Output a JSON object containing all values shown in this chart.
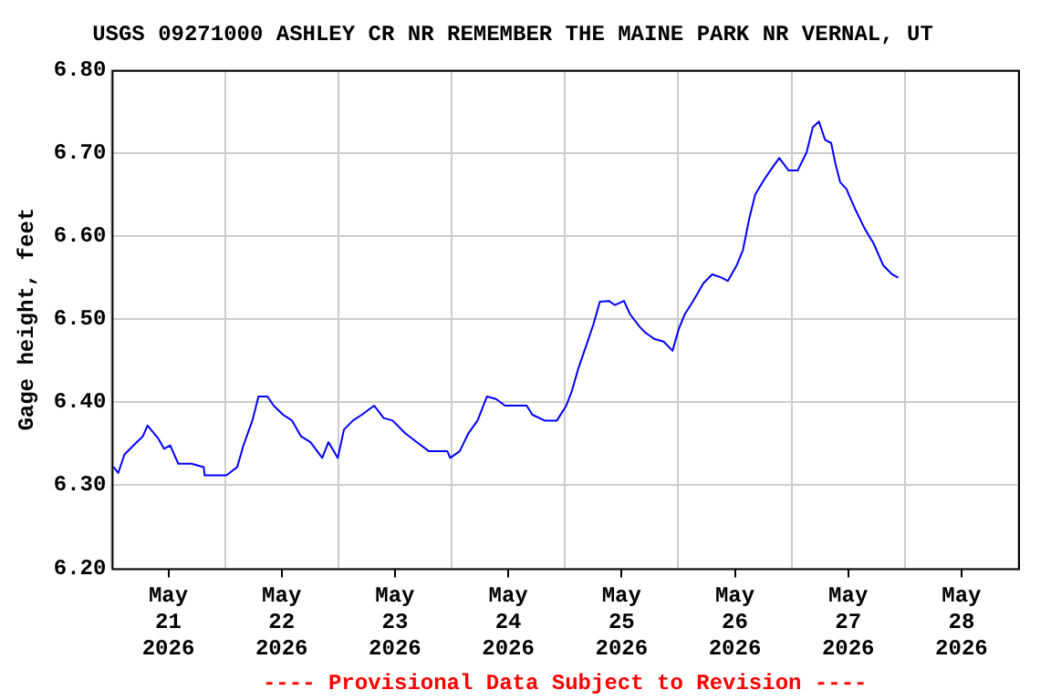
{
  "chart_data": {
    "type": "line",
    "title": "USGS 09271000 ASHLEY CR NR REMEMBER THE MAINE PARK NR VERNAL, UT",
    "ylabel": "Gage height, feet",
    "annotations": [
      "---- Provisional Data Subject to Revision ----"
    ],
    "x": [
      "2026-05-21T00:24",
      "2026-05-21T01:24",
      "2026-05-21T02:42",
      "2026-05-21T04:36",
      "2026-05-21T06:36",
      "2026-05-21T07:36",
      "2026-05-21T09:48",
      "2026-05-21T11:06",
      "2026-05-21T12:24",
      "2026-05-21T14:06",
      "2026-05-21T16:54",
      "2026-05-21T19:30",
      "2026-05-21T19:42",
      "2026-05-22T00:18",
      "2026-05-22T02:36",
      "2026-05-22T03:54",
      "2026-05-22T05:48",
      "2026-05-22T07:06",
      "2026-05-22T09:00",
      "2026-05-22T10:18",
      "2026-05-22T12:18",
      "2026-05-22T14:12",
      "2026-05-22T16:06",
      "2026-05-22T18:06",
      "2026-05-22T20:36",
      "2026-05-22T21:54",
      "2026-05-22T23:54",
      "2026-05-23T01:12",
      "2026-05-23T03:06",
      "2026-05-23T05:00",
      "2026-05-23T07:36",
      "2026-05-23T09:36",
      "2026-05-23T11:30",
      "2026-05-23T14:06",
      "2026-05-23T16:36",
      "2026-05-23T19:12",
      "2026-05-23T23:06",
      "2026-05-23T23:42",
      "2026-05-24T01:42",
      "2026-05-24T03:36",
      "2026-05-24T05:30",
      "2026-05-24T07:30",
      "2026-05-24T09:24",
      "2026-05-24T11:18",
      "2026-05-24T15:54",
      "2026-05-24T17:06",
      "2026-05-24T19:42",
      "2026-05-24T22:18",
      "2026-05-25T00:18",
      "2026-05-25T01:30",
      "2026-05-25T02:48",
      "2026-05-25T04:48",
      "2026-05-25T06:06",
      "2026-05-25T07:24",
      "2026-05-25T09:18",
      "2026-05-25T10:36",
      "2026-05-25T12:30",
      "2026-05-25T13:48",
      "2026-05-25T15:48",
      "2026-05-25T17:00",
      "2026-05-25T19:00",
      "2026-05-25T20:54",
      "2026-05-25T22:48",
      "2026-05-26T00:06",
      "2026-05-26T01:24",
      "2026-05-26T03:24",
      "2026-05-26T05:18",
      "2026-05-26T07:12",
      "2026-05-26T09:12",
      "2026-05-26T10:30",
      "2026-05-26T12:24",
      "2026-05-26T13:42",
      "2026-05-26T15:00",
      "2026-05-26T16:18",
      "2026-05-26T18:12",
      "2026-05-26T19:30",
      "2026-05-26T21:24",
      "2026-05-26T23:24",
      "2026-05-27T01:18",
      "2026-05-27T03:12",
      "2026-05-27T04:30",
      "2026-05-27T05:48",
      "2026-05-27T07:06",
      "2026-05-27T08:24",
      "2026-05-27T09:18",
      "2026-05-27T10:18",
      "2026-05-27T11:36",
      "2026-05-27T13:36",
      "2026-05-27T15:30",
      "2026-05-27T17:24",
      "2026-05-27T19:24",
      "2026-05-27T21:18",
      "2026-05-27T22:36"
    ],
    "series": [
      {
        "color": "#0000ff",
        "values": [
          6.322,
          6.315,
          6.337,
          6.348,
          6.359,
          6.372,
          6.357,
          6.344,
          6.348,
          6.326,
          6.326,
          6.322,
          6.312,
          6.312,
          6.322,
          6.348,
          6.378,
          6.407,
          6.407,
          6.396,
          6.385,
          6.378,
          6.359,
          6.352,
          6.333,
          6.352,
          6.333,
          6.367,
          6.378,
          6.385,
          6.396,
          6.381,
          6.378,
          6.363,
          6.352,
          6.341,
          6.341,
          6.333,
          6.341,
          6.363,
          6.378,
          6.407,
          6.404,
          6.396,
          6.396,
          6.385,
          6.378,
          6.378,
          6.396,
          6.414,
          6.44,
          6.473,
          6.495,
          6.521,
          6.522,
          6.517,
          6.522,
          6.506,
          6.491,
          6.484,
          6.476,
          6.473,
          6.462,
          6.488,
          6.506,
          6.524,
          6.543,
          6.554,
          6.55,
          6.546,
          6.565,
          6.583,
          6.62,
          6.65,
          6.668,
          6.679,
          6.694,
          6.679,
          6.679,
          6.701,
          6.731,
          6.738,
          6.716,
          6.712,
          6.687,
          6.665,
          6.657,
          6.631,
          6.609,
          6.591,
          6.565,
          6.554,
          6.55
        ]
      }
    ],
    "xlim": [
      "2026-05-21T00:00",
      "2026-05-29T00:00"
    ],
    "xticks": [
      {
        "value": "2026-05-21T00:00",
        "label": null
      },
      {
        "value": "2026-05-21T12:00",
        "label": "May 21 2026"
      },
      {
        "value": "2026-05-22T00:00",
        "label": null
      },
      {
        "value": "2026-05-22T12:00",
        "label": "May 22 2026"
      },
      {
        "value": "2026-05-23T00:00",
        "label": null
      },
      {
        "value": "2026-05-23T12:00",
        "label": "May 23 2026"
      },
      {
        "value": "2026-05-24T00:00",
        "label": null
      },
      {
        "value": "2026-05-24T12:00",
        "label": "May 24 2026"
      },
      {
        "value": "2026-05-25T00:00",
        "label": null
      },
      {
        "value": "2026-05-25T12:00",
        "label": "May 25 2026"
      },
      {
        "value": "2026-05-26T00:00",
        "label": null
      },
      {
        "value": "2026-05-26T12:00",
        "label": "May 26 2026"
      },
      {
        "value": "2026-05-27T00:00",
        "label": null
      },
      {
        "value": "2026-05-27T12:00",
        "label": "May 27 2026"
      },
      {
        "value": "2026-05-28T00:00",
        "label": null
      },
      {
        "value": "2026-05-28T12:00",
        "label": "May 28 2026"
      },
      {
        "value": "2026-05-29T00:00",
        "label": null
      }
    ],
    "ylim": [
      6.2,
      6.8
    ],
    "yticks": [
      {
        "value": 6.2,
        "label": "6.20"
      },
      {
        "value": 6.3,
        "label": "6.30"
      },
      {
        "value": 6.4,
        "label": "6.40"
      },
      {
        "value": 6.5,
        "label": "6.50"
      },
      {
        "value": 6.6,
        "label": "6.60"
      },
      {
        "value": 6.7,
        "label": "6.70"
      },
      {
        "value": 6.8,
        "label": "6.80"
      }
    ],
    "grid": true,
    "legend": false,
    "marker": "none",
    "line_style": "solid"
  }
}
